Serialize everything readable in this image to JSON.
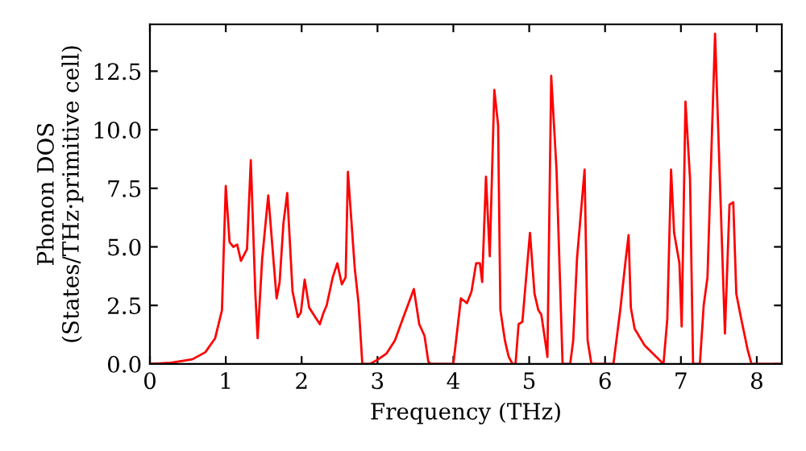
{
  "chart_data": {
    "type": "line",
    "xlabel": "Frequency (THz)",
    "ylabel": "Phonon DOS\n(States/THz·primitive cell)",
    "x": [
      0,
      0.28,
      0.56,
      0.73,
      0.86,
      0.95,
      0.97,
      1.0,
      1.05,
      1.1,
      1.15,
      1.2,
      1.28,
      1.33,
      1.39,
      1.42,
      1.48,
      1.56,
      1.67,
      1.71,
      1.76,
      1.81,
      1.88,
      1.95,
      1.99,
      2.04,
      2.1,
      2.24,
      2.29,
      2.33,
      2.41,
      2.47,
      2.53,
      2.58,
      2.61,
      2.7,
      2.75,
      2.8,
      2.9,
      3.01,
      3.12,
      3.23,
      3.33,
      3.48,
      3.55,
      3.62,
      3.67,
      3.7,
      4.0,
      4.1,
      4.18,
      4.24,
      4.3,
      4.35,
      4.38,
      4.43,
      4.48,
      4.54,
      4.59,
      4.62,
      4.68,
      4.73,
      4.78,
      4.82,
      4.86,
      4.91,
      5.01,
      5.07,
      5.12,
      5.16,
      5.21,
      5.24,
      5.29,
      5.36,
      5.44,
      5.54,
      5.58,
      5.63,
      5.73,
      5.77,
      5.82,
      6.11,
      6.2,
      6.27,
      6.31,
      6.34,
      6.39,
      6.52,
      6.77,
      6.82,
      6.87,
      6.91,
      6.98,
      7.01,
      7.06,
      7.12,
      7.16,
      7.25,
      7.3,
      7.35,
      7.45,
      7.58,
      7.64,
      7.69,
      7.73,
      7.79,
      7.88,
      7.93,
      8.33
    ],
    "series": [
      {
        "color": "#ff0000",
        "values": [
          0,
          0.05,
          0.2,
          0.5,
          1.1,
          2.3,
          4.5,
          7.6,
          5.2,
          5.0,
          5.1,
          4.4,
          4.9,
          8.7,
          3.0,
          1.1,
          4.5,
          7.2,
          2.8,
          3.5,
          6.0,
          7.3,
          3.1,
          2.0,
          2.2,
          3.6,
          2.4,
          1.7,
          2.2,
          2.5,
          3.7,
          4.3,
          3.4,
          3.7,
          8.2,
          4.1,
          2.6,
          0,
          0,
          0.2,
          0.45,
          1.0,
          1.9,
          3.2,
          1.7,
          1.2,
          0.1,
          0,
          0,
          2.8,
          2.6,
          3.1,
          4.3,
          4.3,
          3.5,
          8.0,
          4.6,
          11.7,
          10.2,
          2.3,
          1.0,
          0.3,
          0,
          0,
          1.7,
          1.8,
          5.6,
          3.0,
          2.3,
          2.1,
          1.0,
          0.3,
          12.3,
          8.3,
          0,
          0,
          1.0,
          4.5,
          8.3,
          1.0,
          0,
          0,
          2.3,
          4.4,
          5.5,
          2.4,
          1.5,
          0.8,
          0,
          1.9,
          8.3,
          5.6,
          4.3,
          1.6,
          11.2,
          7.9,
          0,
          0,
          2.5,
          3.7,
          14.1,
          1.3,
          6.8,
          6.9,
          3.0,
          2.0,
          0.6,
          0,
          0
        ]
      }
    ],
    "xlim": [
      0,
      8.33
    ],
    "ylim": [
      0,
      14.5
    ],
    "xticks": [
      0,
      1,
      2,
      3,
      4,
      5,
      6,
      7,
      8
    ],
    "yticks": [
      {
        "value": 0,
        "label": "0.0"
      },
      {
        "value": 2.5,
        "label": "2.5"
      },
      {
        "value": 5,
        "label": "5.0"
      },
      {
        "value": 7.5,
        "label": "7.5"
      },
      {
        "value": 10,
        "label": "10.0"
      },
      {
        "value": 12.5,
        "label": "12.5"
      }
    ],
    "grid": false,
    "legend": false,
    "marker": "none",
    "line_style": "solid"
  }
}
